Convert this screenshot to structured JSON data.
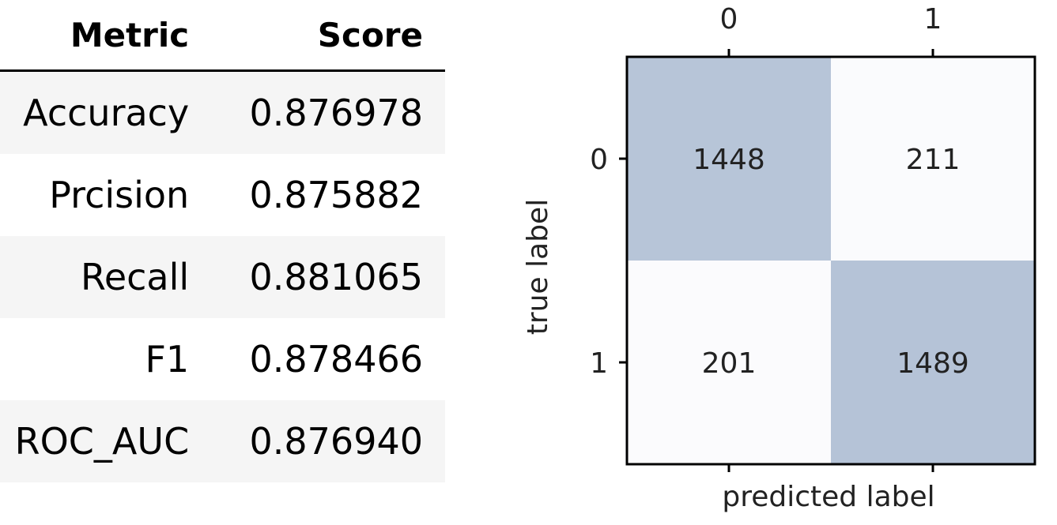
{
  "metrics_table": {
    "headers": [
      "Metric",
      "Score"
    ],
    "rows": [
      {
        "metric": "Accuracy",
        "score": "0.876978"
      },
      {
        "metric": "Prcision",
        "score": "0.875882"
      },
      {
        "metric": "Recall",
        "score": "0.881065"
      },
      {
        "metric": "F1",
        "score": "0.878466"
      },
      {
        "metric": "ROC_AUC",
        "score": "0.876940"
      }
    ]
  },
  "chart_data": {
    "type": "heatmap",
    "x_categories": [
      "0",
      "1"
    ],
    "y_categories": [
      "0",
      "1"
    ],
    "values": [
      [
        1448,
        211
      ],
      [
        201,
        1489
      ]
    ],
    "xlabel": "predicted label",
    "ylabel": "true label",
    "x_ticks_position": "top",
    "grid": false,
    "colors": {
      "high": "#b5c3d7",
      "low": "#fbfbfd",
      "text": "#222222",
      "frame": "#000000"
    }
  }
}
